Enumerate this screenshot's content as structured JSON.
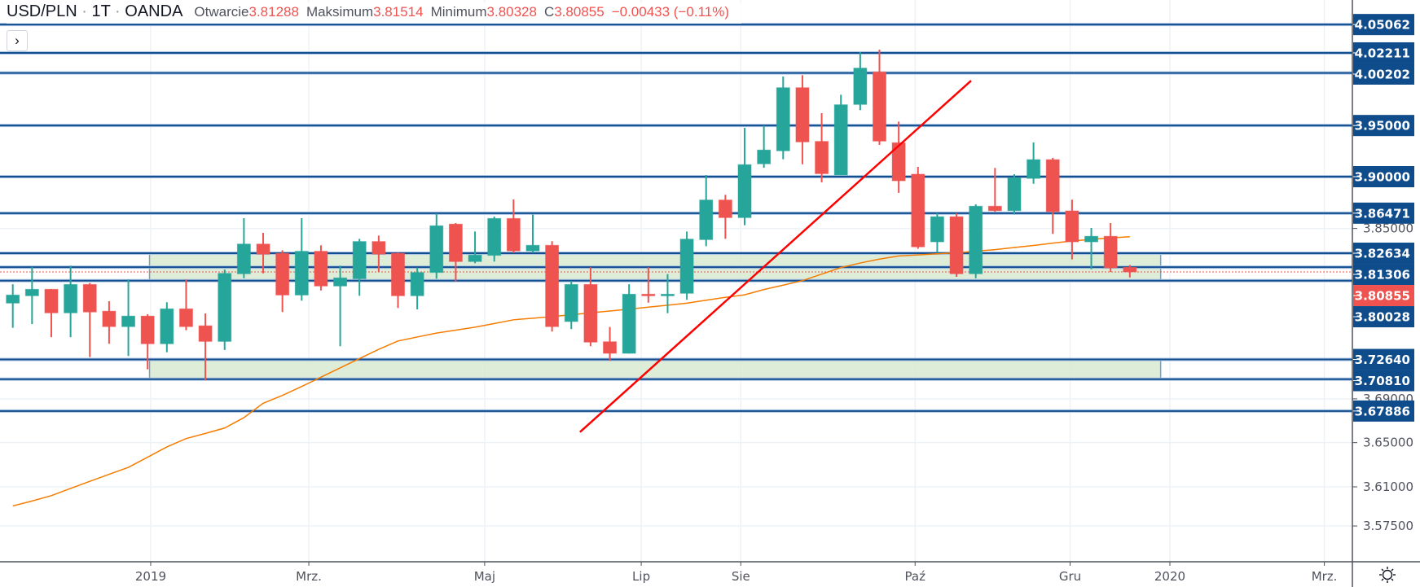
{
  "header": {
    "symbol": "USD/PLN",
    "sep1": "·",
    "interval": "1T",
    "sep2": "·",
    "source": "OANDA",
    "open_label": "Otwarcie",
    "open": "3.81288",
    "high_label": "Maksimum",
    "high": "3.81514",
    "low_label": "Minimum",
    "low": "3.80328",
    "close_label": "C",
    "close": "3.80855",
    "change": "−0.00433 (−0.11%)"
  },
  "toggle_icon": "chevron-right-icon",
  "toggle_glyph": "›",
  "settings_icon": "sun-gear-icon",
  "colors": {
    "up": "#26a69a",
    "down": "#ef5350",
    "level": "#134e8f",
    "level_label_bg": "#0f4c8c",
    "last_price": "#ef5350",
    "ma": "#f57c00",
    "trendline": "#ff0000",
    "zone_fill": "#d6e8cd",
    "zone_border": "#7f9fb2",
    "grid": "#eef2f7",
    "axis_text": "#50535e"
  },
  "chart_data": {
    "type": "candlestick",
    "title": "USD/PLN · 1T · OANDA",
    "scale": "log",
    "candles": [
      [
        3.7791,
        3.7969,
        3.7559,
        3.7867
      ],
      [
        3.786,
        3.8134,
        3.7593,
        3.7921
      ],
      [
        3.7921,
        3.7924,
        3.7471,
        3.7699
      ],
      [
        3.7699,
        3.8145,
        3.7471,
        3.7967
      ],
      [
        3.7967,
        3.798,
        3.7286,
        3.7707
      ],
      [
        3.7715,
        3.7809,
        3.741,
        3.757
      ],
      [
        3.757,
        3.8014,
        3.7296,
        3.7669
      ],
      [
        3.7669,
        3.7686,
        3.7173,
        3.741
      ],
      [
        3.741,
        3.7799,
        3.7331,
        3.7737
      ],
      [
        3.7737,
        3.8014,
        3.7536,
        3.757
      ],
      [
        3.7578,
        3.7694,
        3.7071,
        3.7432
      ],
      [
        3.7432,
        3.8109,
        3.7352,
        3.8072
      ],
      [
        3.8068,
        3.8599,
        3.8026,
        3.8351
      ],
      [
        3.8351,
        3.8458,
        3.8072,
        3.8254
      ],
      [
        3.8262,
        3.8292,
        3.7707,
        3.7867
      ],
      [
        3.7867,
        3.8599,
        3.7814,
        3.8282
      ],
      [
        3.8282,
        3.8339,
        3.791,
        3.7952
      ],
      [
        3.7952,
        3.8145,
        3.7387,
        3.8029
      ],
      [
        3.8021,
        3.8401,
        3.786,
        3.8375
      ],
      [
        3.8375,
        3.8432,
        3.8085,
        3.8254
      ],
      [
        3.8262,
        3.8269,
        3.7745,
        3.786
      ],
      [
        3.786,
        3.8127,
        3.7732,
        3.808
      ],
      [
        3.808,
        3.8645,
        3.8021,
        3.8526
      ],
      [
        3.8542,
        3.8552,
        3.7998,
        3.8184
      ],
      [
        3.8184,
        3.8471,
        3.8168,
        3.8246
      ],
      [
        3.8243,
        3.8614,
        3.8184,
        3.8596
      ],
      [
        3.8596,
        3.8779,
        3.8266,
        3.8285
      ],
      [
        3.8285,
        3.8635,
        3.8266,
        3.8339
      ],
      [
        3.8339,
        3.8378,
        3.7524,
        3.757
      ],
      [
        3.7618,
        3.8001,
        3.7547,
        3.7967
      ],
      [
        3.7967,
        3.813,
        3.7387,
        3.7425
      ],
      [
        3.7429,
        3.7567,
        3.7251,
        3.7321
      ],
      [
        3.7321,
        3.7969,
        3.7319,
        3.7875
      ],
      [
        3.7875,
        3.813,
        3.7795,
        3.7867
      ],
      [
        3.7864,
        3.8065,
        3.7696,
        3.7875
      ],
      [
        3.7883,
        3.8471,
        3.7822,
        3.8398
      ],
      [
        3.8393,
        3.9016,
        3.8331,
        3.8774
      ],
      [
        3.8774,
        3.8824,
        3.8401,
        3.8604
      ],
      [
        3.8604,
        3.9477,
        3.8531,
        3.9117
      ],
      [
        3.9125,
        3.9499,
        3.9087,
        3.926
      ],
      [
        3.9252,
        3.9985,
        3.9169,
        3.9874
      ],
      [
        3.9874,
        3.9998,
        3.9121,
        3.9339
      ],
      [
        3.9344,
        3.9622,
        3.8945,
        3.9029
      ],
      [
        3.9016,
        3.9804,
        3.9016,
        3.9705
      ],
      [
        3.9708,
        4.0229,
        3.9652,
        4.0069
      ],
      [
        4.0031,
        4.0254,
        3.931,
        3.9347
      ],
      [
        3.9331,
        3.9539,
        3.8843,
        3.896
      ],
      [
        3.9024,
        3.9095,
        3.8305,
        3.8324
      ],
      [
        3.8372,
        3.8647,
        3.8266,
        3.8613
      ],
      [
        3.8613,
        3.8647,
        3.8039,
        3.8068
      ],
      [
        3.8068,
        3.8732,
        3.8026,
        3.8714
      ],
      [
        3.8714,
        3.9085,
        3.8661,
        3.8671
      ],
      [
        3.8671,
        3.9024,
        3.8635,
        3.899
      ],
      [
        3.8983,
        3.9334,
        3.8931,
        3.9166
      ],
      [
        3.9166,
        3.9183,
        3.8448,
        3.8661
      ],
      [
        3.8669,
        3.8777,
        3.8204,
        3.8372
      ],
      [
        3.8372,
        3.8505,
        3.8111,
        3.8425
      ],
      [
        3.8425,
        3.8552,
        3.8085,
        3.8124
      ],
      [
        3.81288,
        3.81514,
        3.80328,
        3.80855
      ]
    ],
    "candle_fields": [
      "open",
      "high",
      "low",
      "close"
    ],
    "moving_average": [
      3.5929,
      3.5973,
      3.6021,
      3.6086,
      3.615,
      3.6213,
      3.6276,
      3.6368,
      3.6461,
      3.6537,
      3.6584,
      3.6633,
      3.6728,
      3.686,
      3.6932,
      3.7014,
      3.71,
      3.7186,
      3.7272,
      3.7358,
      3.7436,
      3.7473,
      3.751,
      3.7537,
      3.7565,
      3.7599,
      3.7634,
      3.7649,
      3.7664,
      3.7681,
      3.7699,
      3.7717,
      3.7734,
      3.7753,
      3.7771,
      3.779,
      3.7818,
      3.7845,
      3.7869,
      3.7919,
      3.796,
      3.8003,
      3.8065,
      3.8127,
      3.817,
      3.8207,
      3.8237,
      3.8247,
      3.8258,
      3.8267,
      3.8283,
      3.8298,
      3.8318,
      3.8337,
      3.836,
      3.838,
      3.8396,
      3.8409,
      3.8421
    ],
    "levels": [
      "4.05062",
      "4.02211",
      "4.00202",
      "3.95000",
      "3.90000",
      "3.86471",
      "3.82634",
      "3.81306",
      "3.80028",
      "3.72640",
      "3.70810",
      "3.67886"
    ],
    "last_price": "3.80855",
    "zones": [
      {
        "from_index": 7.1,
        "to_index": 59.6,
        "top": 3.82634,
        "bottom": 3.80028
      },
      {
        "from_index": 7.1,
        "to_index": 59.6,
        "top": 3.7264,
        "bottom": 3.7081
      }
    ],
    "trendline": {
      "start": {
        "index": 29.45,
        "price": 3.6596
      },
      "end": {
        "index": 49.76,
        "price": 3.9944
      }
    },
    "price_ticks": [
      "3.85000",
      "3.69000",
      "3.65000",
      "3.61000",
      "3.57500"
    ],
    "time_ticks": [
      {
        "label": "2019",
        "index": 7.16
      },
      {
        "label": "Mrz.",
        "index": 15.37
      },
      {
        "label": "Maj",
        "index": 24.5
      },
      {
        "label": "Lip",
        "index": 32.63
      },
      {
        "label": "Sie",
        "index": 37.8
      },
      {
        "label": "Paź",
        "index": 46.85
      },
      {
        "label": "Gru",
        "index": 54.9
      },
      {
        "label": "2020",
        "index": 60.08
      },
      {
        "label": "Mrz.",
        "index": 68.1
      }
    ],
    "grid": true
  }
}
